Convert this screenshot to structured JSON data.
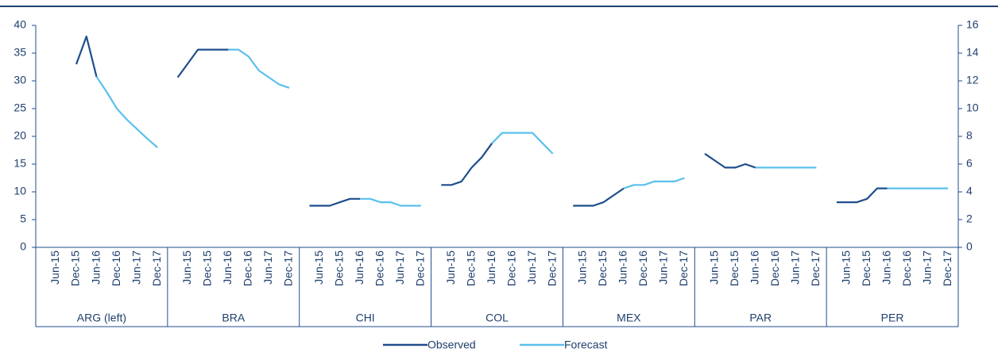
{
  "chart_data": {
    "type": "line",
    "series": [
      {
        "name": "Observed",
        "color": "#1f4e8c"
      },
      {
        "name": "Forecast",
        "color": "#5bc0eb"
      }
    ],
    "ylim": [
      0,
      40
    ],
    "yticks": [
      0,
      5,
      10,
      15,
      20,
      25,
      30,
      35,
      40
    ],
    "y2lim": [
      0,
      16
    ],
    "y2ticks": [
      0,
      2,
      4,
      6,
      8,
      10,
      12,
      14,
      16
    ],
    "panels": [
      {
        "name": "ARG (left)",
        "axis": "y",
        "categories": [
          null,
          "Jun-15",
          null,
          "Dec-15",
          null,
          "Jun-16",
          null,
          "Dec-16",
          null,
          "Jun-17",
          null,
          "Dec-17"
        ],
        "series": [
          {
            "values": [
              null,
              null,
              null,
              33,
              38,
              30.75,
              null,
              null,
              null,
              null,
              null,
              null
            ]
          },
          {
            "values": [
              null,
              null,
              null,
              null,
              null,
              30.75,
              28,
              25,
              23,
              21.3,
              19.6,
              18
            ]
          }
        ]
      },
      {
        "name": "BRA",
        "axis": "y2",
        "categories": [
          null,
          "Jun-15",
          null,
          "Dec-15",
          null,
          "Jun-16",
          null,
          "Dec-16",
          null,
          "Jun-17",
          null,
          "Dec-17"
        ],
        "series": [
          {
            "values": [
              12.25,
              13.25,
              14.25,
              14.25,
              14.25,
              14.25,
              null,
              null,
              null,
              null,
              null,
              null
            ]
          },
          {
            "values": [
              null,
              null,
              null,
              null,
              null,
              14.25,
              14.25,
              13.75,
              12.75,
              12.25,
              11.75,
              11.5
            ]
          }
        ]
      },
      {
        "name": "CHI",
        "axis": "y2",
        "categories": [
          null,
          "Jun-15",
          null,
          "Dec-15",
          null,
          "Jun-16",
          null,
          "Dec-16",
          null,
          "Jun-17",
          null,
          "Dec-17"
        ],
        "series": [
          {
            "values": [
              3,
              3,
              3,
              3.25,
              3.5,
              3.5,
              null,
              null,
              null,
              null,
              null,
              null
            ]
          },
          {
            "values": [
              null,
              null,
              null,
              null,
              null,
              3.5,
              3.5,
              3.25,
              3.25,
              3,
              3,
              3
            ]
          }
        ]
      },
      {
        "name": "COL",
        "axis": "y2",
        "categories": [
          null,
          "Jun-15",
          null,
          "Dec-15",
          null,
          "Jun-16",
          null,
          "Dec-16",
          null,
          "Jun-17",
          null,
          "Dec-17"
        ],
        "series": [
          {
            "values": [
              4.5,
              4.5,
              4.75,
              5.75,
              6.5,
              7.5,
              null,
              null,
              null,
              null,
              null,
              null
            ]
          },
          {
            "values": [
              null,
              null,
              null,
              null,
              null,
              7.5,
              8.25,
              8.25,
              8.25,
              8.25,
              7.5,
              6.75
            ]
          }
        ]
      },
      {
        "name": "MEX",
        "axis": "y2",
        "categories": [
          null,
          "Jun-15",
          null,
          "Dec-15",
          null,
          "Jun-16",
          null,
          "Dec-16",
          null,
          "Jun-17",
          null,
          "Dec-17"
        ],
        "series": [
          {
            "values": [
              3,
              3,
              3,
              3.25,
              3.75,
              4.25,
              null,
              null,
              null,
              null,
              null,
              null
            ]
          },
          {
            "values": [
              null,
              null,
              null,
              null,
              null,
              4.25,
              4.5,
              4.5,
              4.75,
              4.75,
              4.75,
              5
            ]
          }
        ]
      },
      {
        "name": "PAR",
        "axis": "y2",
        "categories": [
          null,
          "Jun-15",
          null,
          "Dec-15",
          null,
          "Jun-16",
          null,
          "Dec-16",
          null,
          "Jun-17",
          null,
          "Dec-17"
        ],
        "series": [
          {
            "values": [
              6.75,
              6.25,
              5.75,
              5.75,
              6,
              5.75,
              null,
              null,
              null,
              null,
              null,
              null
            ]
          },
          {
            "values": [
              null,
              null,
              null,
              null,
              null,
              5.75,
              5.75,
              5.75,
              5.75,
              5.75,
              5.75,
              5.75
            ]
          }
        ]
      },
      {
        "name": "PER",
        "axis": "y2",
        "categories": [
          null,
          "Jun-15",
          null,
          "Dec-15",
          null,
          "Jun-16",
          null,
          "Dec-16",
          null,
          "Jun-17",
          null,
          "Dec-17"
        ],
        "series": [
          {
            "values": [
              3.25,
              3.25,
              3.25,
              3.5,
              4.25,
              4.25,
              null,
              null,
              null,
              null,
              null,
              null
            ]
          },
          {
            "values": [
              null,
              null,
              null,
              null,
              null,
              4.25,
              4.25,
              4.25,
              4.25,
              4.25,
              4.25,
              4.25
            ]
          }
        ]
      }
    ]
  }
}
